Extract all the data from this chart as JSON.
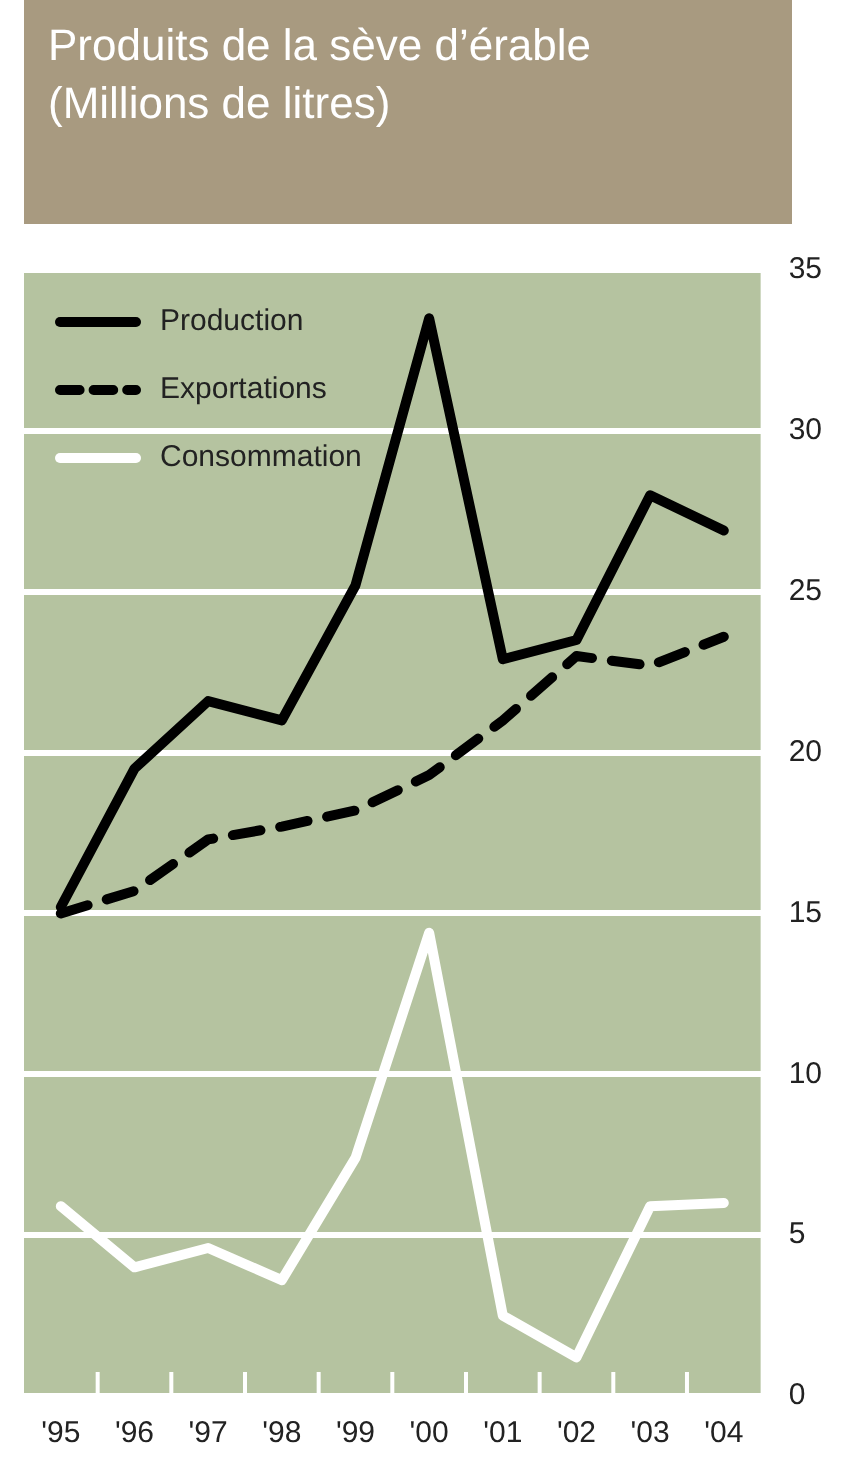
{
  "chart_data": {
    "type": "line",
    "title": "Produits de la sève d’érable\n(Millions de litres)",
    "categories": [
      "'95",
      "'96",
      "'97",
      "'98",
      "'99",
      "'00",
      "'01",
      "'02",
      "'03",
      "'04"
    ],
    "series": [
      {
        "name": "Production",
        "color": "#000000",
        "line_style": "solid",
        "values": [
          15.2,
          19.5,
          21.6,
          21.0,
          25.2,
          33.5,
          22.9,
          23.5,
          28.0,
          26.9
        ]
      },
      {
        "name": "Exportations",
        "color": "#000000",
        "line_style": "dashed",
        "values": [
          15.0,
          15.7,
          17.3,
          17.7,
          18.2,
          19.3,
          21.0,
          23.0,
          22.7,
          23.6
        ]
      },
      {
        "name": "Consommation",
        "color": "#ffffff",
        "line_style": "solid",
        "values": [
          5.9,
          4.0,
          4.6,
          3.6,
          7.4,
          14.4,
          2.5,
          1.2,
          5.9,
          6.0
        ]
      }
    ],
    "ylim": [
      0,
      35
    ],
    "yticks": [
      0,
      5,
      10,
      15,
      20,
      25,
      30,
      35
    ],
    "grid": "y",
    "legend": "top left",
    "marker": "none"
  }
}
